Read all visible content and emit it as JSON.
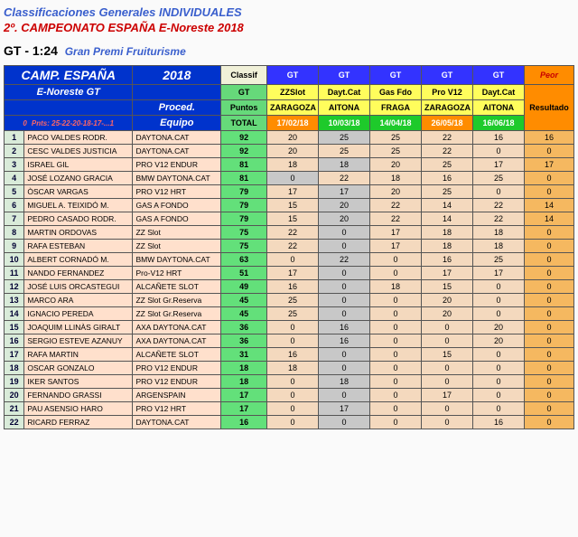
{
  "titles": {
    "t1": "Classificaciones Generales INDIVIDUALES",
    "t2": "2º. CAMPEONATO ESPAÑA E-Noreste 2018",
    "t3_gt": "GT",
    "t3_scale": " - 1:24",
    "t3_event": "Gran Premi Fruiturisme"
  },
  "header": {
    "camp": "CAMP. ESPAÑA",
    "year": "2018",
    "region": "E-Noreste GT",
    "proced": "Proced.",
    "equipo": "Equipo",
    "pos0": "0",
    "pnts": "Pnts: 25-22-20-18-17-...1",
    "classif": "Classif",
    "gt": "GT",
    "puntos": "Puntos",
    "total": "TOTAL",
    "gt_label": "GT",
    "peor": "Peor",
    "resultado": "Resultado"
  },
  "events": [
    {
      "line1": "ZZSlot",
      "line2": "ZARAGOZA",
      "date": "17/02/18",
      "date_class": "hdr-orange-date"
    },
    {
      "line1": "Dayt.Cat",
      "line2": "AITONA",
      "date": "10/03/18",
      "date_class": "hdr-green-date"
    },
    {
      "line1": "Gas Fdo",
      "line2": "FRAGA",
      "date": "14/04/18",
      "date_class": "hdr-green-date"
    },
    {
      "line1": "Pro V12",
      "line2": "ZARAGOZA",
      "date": "26/05/18",
      "date_class": "hdr-orange-date"
    },
    {
      "line1": "Dayt.Cat",
      "line2": "AITONA",
      "date": "16/06/18",
      "date_class": "hdr-green-date"
    }
  ],
  "rows": [
    {
      "pos": 1,
      "name": "PACO VALDES RODR.",
      "team": "DAYTONA.CAT",
      "total": 92,
      "s": [
        [
          20,
          0
        ],
        [
          25,
          1
        ],
        [
          25,
          0
        ],
        [
          22,
          0
        ],
        [
          16,
          0
        ]
      ],
      "peor": 16
    },
    {
      "pos": 2,
      "name": "CESC VALDES JUSTICIA",
      "team": "DAYTONA.CAT",
      "total": 92,
      "s": [
        [
          20,
          0
        ],
        [
          25,
          0
        ],
        [
          25,
          0
        ],
        [
          22,
          0
        ],
        [
          0,
          0
        ]
      ],
      "peor": 0
    },
    {
      "pos": 3,
      "name": "ISRAEL GIL",
      "team": "PRO V12 ENDUR",
      "total": 81,
      "s": [
        [
          18,
          0
        ],
        [
          18,
          1
        ],
        [
          20,
          0
        ],
        [
          25,
          0
        ],
        [
          17,
          0
        ]
      ],
      "peor": 17
    },
    {
      "pos": 4,
      "name": "JOSÉ LOZANO GRACIA",
      "team": "BMW DAYTONA.CAT",
      "total": 81,
      "s": [
        [
          0,
          1
        ],
        [
          22,
          0
        ],
        [
          18,
          0
        ],
        [
          16,
          0
        ],
        [
          25,
          0
        ]
      ],
      "peor": 0
    },
    {
      "pos": 5,
      "name": "ÒSCAR VARGAS",
      "team": "PRO V12 HRT",
      "total": 79,
      "s": [
        [
          17,
          0
        ],
        [
          17,
          1
        ],
        [
          20,
          0
        ],
        [
          25,
          0
        ],
        [
          0,
          0
        ]
      ],
      "peor": 0
    },
    {
      "pos": 6,
      "name": "MIGUEL A. TEIXIDÓ M.",
      "team": "GAS A FONDO",
      "total": 79,
      "s": [
        [
          15,
          0
        ],
        [
          20,
          1
        ],
        [
          22,
          0
        ],
        [
          14,
          0
        ],
        [
          22,
          0
        ]
      ],
      "peor": 14
    },
    {
      "pos": 7,
      "name": "PEDRO CASADO RODR.",
      "team": "GAS A FONDO",
      "total": 79,
      "s": [
        [
          15,
          0
        ],
        [
          20,
          1
        ],
        [
          22,
          0
        ],
        [
          14,
          0
        ],
        [
          22,
          0
        ]
      ],
      "peor": 14
    },
    {
      "pos": 8,
      "name": "MARTIN ORDOVAS",
      "team": "ZZ Slot",
      "total": 75,
      "s": [
        [
          22,
          0
        ],
        [
          0,
          1
        ],
        [
          17,
          0
        ],
        [
          18,
          0
        ],
        [
          18,
          0
        ]
      ],
      "peor": 0
    },
    {
      "pos": 9,
      "name": "RAFA ESTEBAN",
      "team": "ZZ Slot",
      "total": 75,
      "s": [
        [
          22,
          0
        ],
        [
          0,
          1
        ],
        [
          17,
          0
        ],
        [
          18,
          0
        ],
        [
          18,
          0
        ]
      ],
      "peor": 0
    },
    {
      "pos": 10,
      "name": "ALBERT CORNADÓ M.",
      "team": "BMW DAYTONA.CAT",
      "total": 63,
      "s": [
        [
          0,
          0
        ],
        [
          22,
          1
        ],
        [
          0,
          0
        ],
        [
          16,
          0
        ],
        [
          25,
          0
        ]
      ],
      "peor": 0
    },
    {
      "pos": 11,
      "name": "NANDO FERNANDEZ",
      "team": "Pro-V12 HRT",
      "total": 51,
      "s": [
        [
          17,
          0
        ],
        [
          0,
          1
        ],
        [
          0,
          0
        ],
        [
          17,
          0
        ],
        [
          17,
          0
        ]
      ],
      "peor": 0
    },
    {
      "pos": 12,
      "name": "JOSÉ LUIS ORCASTEGUI",
      "team": "ALCAÑETE SLOT",
      "total": 49,
      "s": [
        [
          16,
          0
        ],
        [
          0,
          1
        ],
        [
          18,
          0
        ],
        [
          15,
          0
        ],
        [
          0,
          0
        ]
      ],
      "peor": 0
    },
    {
      "pos": 13,
      "name": "MARCO ARA",
      "team": "ZZ Slot Gr.Reserva",
      "total": 45,
      "s": [
        [
          25,
          0
        ],
        [
          0,
          1
        ],
        [
          0,
          0
        ],
        [
          20,
          0
        ],
        [
          0,
          0
        ]
      ],
      "peor": 0
    },
    {
      "pos": 14,
      "name": "IGNACIO PEREDA",
      "team": "ZZ Slot Gr.Reserva",
      "total": 45,
      "s": [
        [
          25,
          0
        ],
        [
          0,
          1
        ],
        [
          0,
          0
        ],
        [
          20,
          0
        ],
        [
          0,
          0
        ]
      ],
      "peor": 0
    },
    {
      "pos": 15,
      "name": "JOAQUIM LLINÀS GIRALT",
      "team": "AXA DAYTONA.CAT",
      "total": 36,
      "s": [
        [
          0,
          0
        ],
        [
          16,
          1
        ],
        [
          0,
          0
        ],
        [
          0,
          0
        ],
        [
          20,
          0
        ]
      ],
      "peor": 0
    },
    {
      "pos": 16,
      "name": "SERGIO ESTEVE AZANUY",
      "team": "AXA DAYTONA.CAT",
      "total": 36,
      "s": [
        [
          0,
          0
        ],
        [
          16,
          1
        ],
        [
          0,
          0
        ],
        [
          0,
          0
        ],
        [
          20,
          0
        ]
      ],
      "peor": 0
    },
    {
      "pos": 17,
      "name": "RAFA MARTIN",
      "team": "ALCAÑETE SLOT",
      "total": 31,
      "s": [
        [
          16,
          0
        ],
        [
          0,
          1
        ],
        [
          0,
          0
        ],
        [
          15,
          0
        ],
        [
          0,
          0
        ]
      ],
      "peor": 0
    },
    {
      "pos": 18,
      "name": "OSCAR GONZALO",
      "team": "PRO V12 ENDUR",
      "total": 18,
      "s": [
        [
          18,
          0
        ],
        [
          0,
          1
        ],
        [
          0,
          0
        ],
        [
          0,
          0
        ],
        [
          0,
          0
        ]
      ],
      "peor": 0
    },
    {
      "pos": 19,
      "name": "IKER SANTOS",
      "team": "PRO V12 ENDUR",
      "total": 18,
      "s": [
        [
          0,
          0
        ],
        [
          18,
          1
        ],
        [
          0,
          0
        ],
        [
          0,
          0
        ],
        [
          0,
          0
        ]
      ],
      "peor": 0
    },
    {
      "pos": 20,
      "name": "FERNANDO GRASSI",
      "team": "ARGENSPAIN",
      "total": 17,
      "s": [
        [
          0,
          0
        ],
        [
          0,
          1
        ],
        [
          0,
          0
        ],
        [
          17,
          0
        ],
        [
          0,
          0
        ]
      ],
      "peor": 0
    },
    {
      "pos": 21,
      "name": "PAU ASENSIO HARO",
      "team": "PRO V12 HRT",
      "total": 17,
      "s": [
        [
          0,
          0
        ],
        [
          17,
          1
        ],
        [
          0,
          0
        ],
        [
          0,
          0
        ],
        [
          0,
          0
        ]
      ],
      "peor": 0
    },
    {
      "pos": 22,
      "name": "RICARD FERRAZ",
      "team": "DAYTONA.CAT",
      "total": 16,
      "s": [
        [
          0,
          0
        ],
        [
          0,
          1
        ],
        [
          0,
          0
        ],
        [
          0,
          0
        ],
        [
          16,
          0
        ]
      ],
      "peor": 0
    }
  ]
}
